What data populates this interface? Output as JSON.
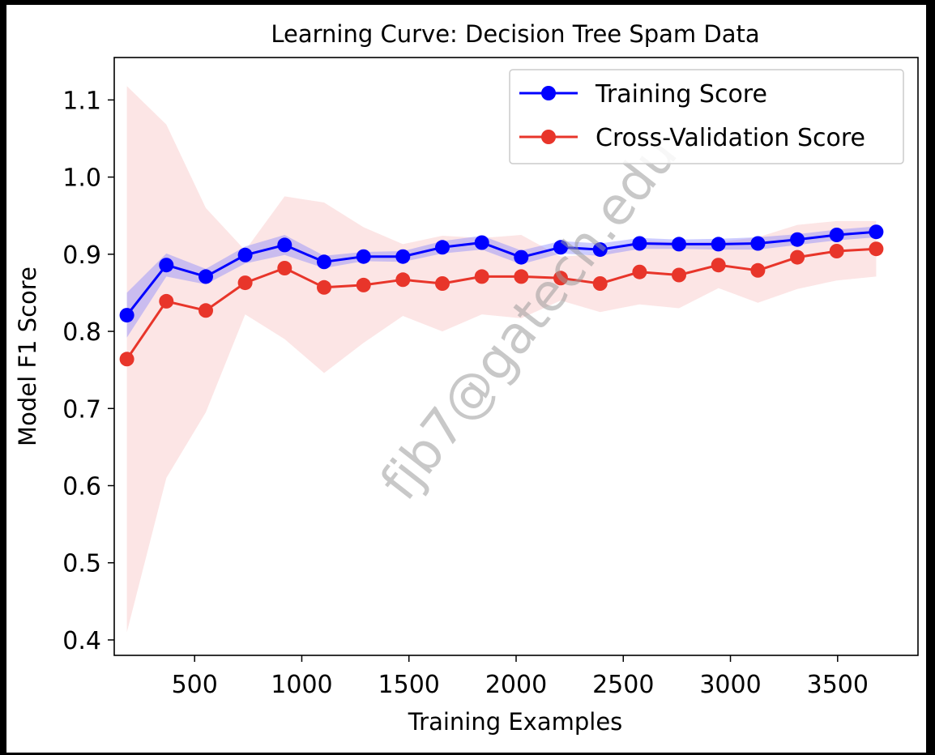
{
  "chart_data": {
    "type": "line",
    "title": "Learning Curve: Decision Tree Spam Data",
    "xlabel": "Training Examples",
    "ylabel": "Model F1 Score",
    "xlim": [
      125,
      3875
    ],
    "ylim": [
      0.38,
      1.155
    ],
    "xticks": [
      500,
      1000,
      1500,
      2000,
      2500,
      3000,
      3500
    ],
    "xtick_labels": [
      "500",
      "1000",
      "1500",
      "2000",
      "2500",
      "3000",
      "3500"
    ],
    "yticks": [
      0.4,
      0.5,
      0.6,
      0.7,
      0.8,
      0.9,
      1.0,
      1.1
    ],
    "ytick_labels": [
      "0.4",
      "0.5",
      "0.6",
      "0.7",
      "0.8",
      "0.9",
      "1.0",
      "1.1"
    ],
    "grid": false,
    "legend_position": "top-right",
    "x": [
      184,
      368,
      552,
      736,
      920,
      1104,
      1288,
      1472,
      1656,
      1840,
      2024,
      2208,
      2392,
      2576,
      2760,
      2944,
      3128,
      3312,
      3496,
      3680
    ],
    "series": [
      {
        "name": "Training Score",
        "color": "#0000ff",
        "band_color": "#8080ff",
        "values": [
          0.821,
          0.886,
          0.871,
          0.899,
          0.912,
          0.89,
          0.897,
          0.897,
          0.909,
          0.915,
          0.896,
          0.909,
          0.906,
          0.914,
          0.913,
          0.913,
          0.914,
          0.919,
          0.925,
          0.929
        ],
        "lower": [
          0.792,
          0.871,
          0.861,
          0.888,
          0.899,
          0.882,
          0.891,
          0.89,
          0.901,
          0.906,
          0.887,
          0.901,
          0.898,
          0.907,
          0.907,
          0.906,
          0.906,
          0.912,
          0.918,
          0.922
        ],
        "upper": [
          0.85,
          0.901,
          0.881,
          0.91,
          0.925,
          0.898,
          0.903,
          0.904,
          0.917,
          0.924,
          0.905,
          0.917,
          0.914,
          0.921,
          0.919,
          0.92,
          0.922,
          0.926,
          0.932,
          0.936
        ]
      },
      {
        "name": "Cross-Validation Score",
        "color": "#e8352a",
        "band_color": "#f4a8a8",
        "values": [
          0.764,
          0.839,
          0.827,
          0.863,
          0.882,
          0.857,
          0.86,
          0.867,
          0.862,
          0.871,
          0.871,
          0.869,
          0.862,
          0.877,
          0.873,
          0.886,
          0.879,
          0.896,
          0.904,
          0.907
        ],
        "lower": [
          0.41,
          0.61,
          0.695,
          0.822,
          0.79,
          0.746,
          0.785,
          0.82,
          0.8,
          0.822,
          0.817,
          0.84,
          0.825,
          0.835,
          0.83,
          0.856,
          0.837,
          0.855,
          0.866,
          0.871
        ],
        "upper": [
          1.118,
          1.068,
          0.96,
          0.905,
          0.975,
          0.967,
          0.935,
          0.913,
          0.924,
          0.921,
          0.925,
          0.897,
          0.9,
          0.918,
          0.915,
          0.916,
          0.922,
          0.938,
          0.943,
          0.943
        ]
      }
    ]
  },
  "watermark": "fjb7@gatech.edu"
}
